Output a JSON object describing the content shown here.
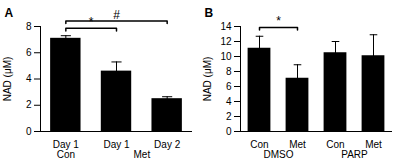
{
  "chart_data": [
    {
      "type": "bar",
      "title": "A",
      "y_label": "NAD (μM)",
      "categories": [
        "Day 1",
        "Day 1",
        "Day 2"
      ],
      "values": [
        7.1,
        4.6,
        2.5
      ],
      "errors": [
        0.2,
        0.7,
        0.15
      ],
      "color": "#000000",
      "ylim": [
        0,
        8
      ],
      "yticks": [
        0,
        2,
        4,
        6,
        8
      ],
      "groups": [
        {
          "label": "Con",
          "span": [
            0,
            0
          ]
        },
        {
          "label": "Met",
          "span": [
            1,
            2
          ]
        }
      ],
      "annotations": [
        {
          "label": "*",
          "from": 0,
          "to": 1
        },
        {
          "label": "#",
          "from": 0,
          "to": 2
        }
      ]
    },
    {
      "type": "bar",
      "title": "B",
      "y_label": "NAD (μM)",
      "categories": [
        "Con",
        "Met",
        "Con",
        "Met"
      ],
      "values": [
        11.1,
        7.1,
        10.5,
        10.1
      ],
      "errors": [
        1.6,
        1.8,
        1.5,
        2.8
      ],
      "color": "#000000",
      "ylim": [
        0,
        14
      ],
      "yticks": [
        0,
        2,
        4,
        6,
        8,
        10,
        12,
        14
      ],
      "groups": [
        {
          "label": "DMSO",
          "span": [
            0,
            1
          ]
        },
        {
          "label": "PARP",
          "span": [
            2,
            3
          ]
        }
      ],
      "annotations": [
        {
          "label": "*",
          "from": 0,
          "to": 1
        }
      ]
    }
  ]
}
